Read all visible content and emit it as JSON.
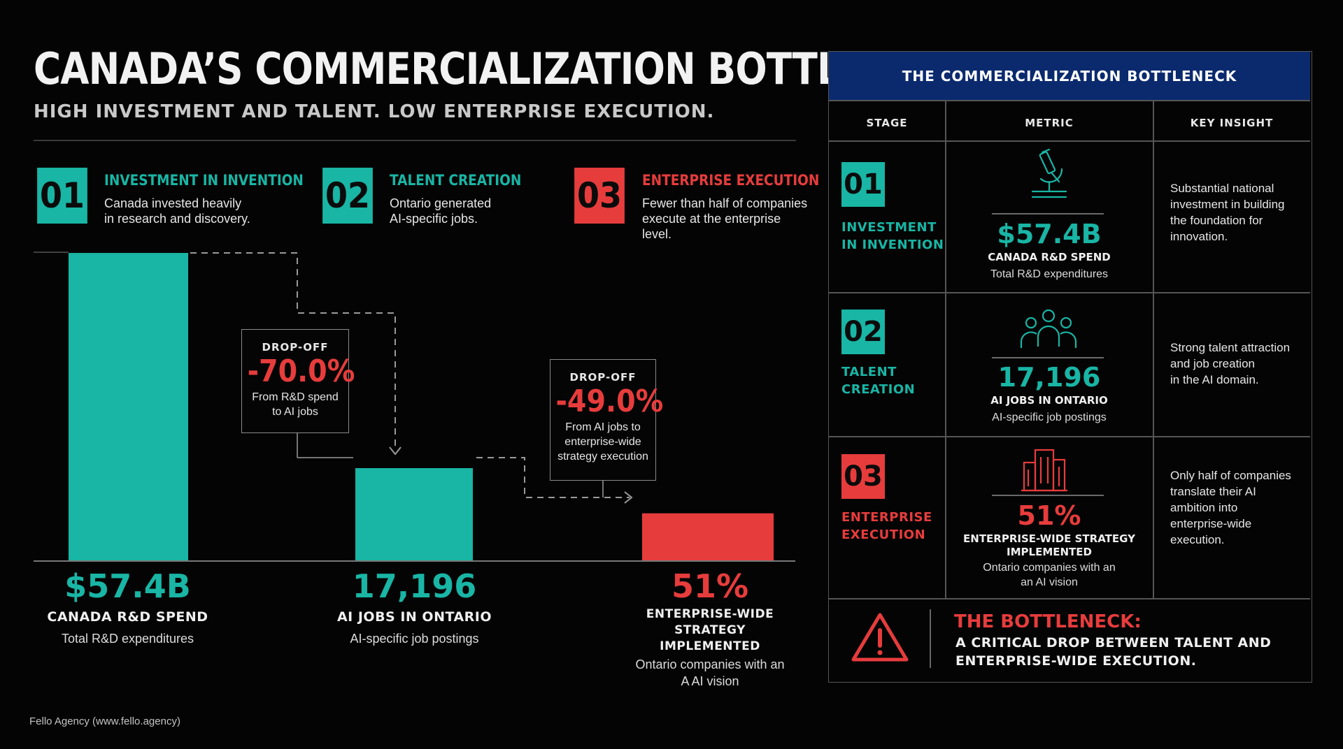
{
  "header": {
    "title": "CANADA’S COMMERCIALIZATION BOTTLENECK",
    "subtitle": "HIGH INVESTMENT AND TALENT. LOW ENTERPRISE EXECUTION."
  },
  "colors": {
    "teal": "#19b5a5",
    "red": "#e73c3c",
    "navy": "#0b2a6e"
  },
  "stages": [
    {
      "num": "01",
      "title": "INVESTMENT IN INVENTION",
      "desc_lines": [
        "Canada invested heavily",
        "in research and discovery."
      ],
      "color": "#19b5a5"
    },
    {
      "num": "02",
      "title": "TALENT CREATION",
      "desc_lines": [
        "Ontario generated",
        "AI-specific jobs."
      ],
      "color": "#19b5a5"
    },
    {
      "num": "03",
      "title": "ENTERPRISE EXECUTION",
      "desc_lines": [
        "Fewer than half of companies",
        "execute at the enterprise",
        "level."
      ],
      "color": "#e73c3c"
    }
  ],
  "chart_data": {
    "type": "bar",
    "categories": [
      "CANADA R&D SPEND",
      "AI JOBS IN ONTARIO",
      "ENTERPRISE-WIDE STRATEGY IMPLEMENTED"
    ],
    "values": [
      100,
      30,
      15.3
    ],
    "display_values": [
      "$57.4B",
      "17,196",
      "51%"
    ],
    "label_lines": [
      [
        "CANADA R&D SPEND"
      ],
      [
        "AI JOBS IN ONTARIO"
      ],
      [
        "ENTERPRISE-WIDE STRATEGY",
        "IMPLEMENTED"
      ]
    ],
    "sub_lines": [
      [
        "Total R&D expenditures"
      ],
      [
        "AI-specific job postings"
      ],
      [
        "Ontario companies with an",
        "A AI vision"
      ]
    ],
    "colors": [
      "#19b5a5",
      "#19b5a5",
      "#e73c3c"
    ],
    "ylim": [
      0,
      100
    ],
    "grid": false,
    "annotations": [
      {
        "label": "DROP-OFF",
        "value": "-70.0%",
        "text_lines": [
          "From R&D spend",
          "to AI jobs"
        ]
      },
      {
        "label": "DROP-OFF",
        "value": "-49.0%",
        "text_lines": [
          "From AI jobs to",
          "enterprise-wide",
          "strategy execution"
        ]
      }
    ]
  },
  "table": {
    "title": "THE COMMERCIALIZATION BOTTLENECK",
    "columns": [
      "STAGE",
      "METRIC",
      "KEY INSIGHT"
    ],
    "rows": [
      {
        "num": "01",
        "name_lines": [
          "INVESTMENT",
          "IN INVENTION"
        ],
        "icon": "microscope-icon",
        "value": "$57.4B",
        "label_lines": [
          "CANADA R&D SPEND"
        ],
        "sub_lines": [
          "Total R&D expenditures"
        ],
        "insight_lines": [
          "Substantial national",
          "investment in building",
          "the foundation for",
          "innovation."
        ],
        "color": "#19b5a5"
      },
      {
        "num": "02",
        "name_lines": [
          "TALENT",
          "CREATION"
        ],
        "icon": "people-icon",
        "value": "17,196",
        "label_lines": [
          "AI JOBS IN ONTARIO"
        ],
        "sub_lines": [
          "AI-specific job postings"
        ],
        "insight_lines": [
          "Strong talent attraction",
          "and job creation",
          "in the AI domain."
        ],
        "color": "#19b5a5"
      },
      {
        "num": "03",
        "name_lines": [
          "ENTERPRISE",
          "EXECUTION"
        ],
        "icon": "building-icon",
        "value": "51%",
        "label_lines": [
          "ENTERPRISE-WIDE STRATEGY",
          "IMPLEMENTED"
        ],
        "sub_lines": [
          "Ontario companies with an",
          "an AI vision"
        ],
        "insight_lines": [
          "Only half of companies",
          "translate their AI",
          "ambition into",
          "enterprise-wide",
          "execution."
        ],
        "color": "#e73c3c"
      }
    ],
    "bottleneck": {
      "icon": "warning-icon",
      "title": "THE BOTTLENECK:",
      "text_lines": [
        "A CRITICAL DROP BETWEEN TALENT AND",
        "ENTERPRISE-WIDE EXECUTION."
      ]
    }
  },
  "footer": {
    "credit": "Fello Agency (www.fello.agency)"
  }
}
